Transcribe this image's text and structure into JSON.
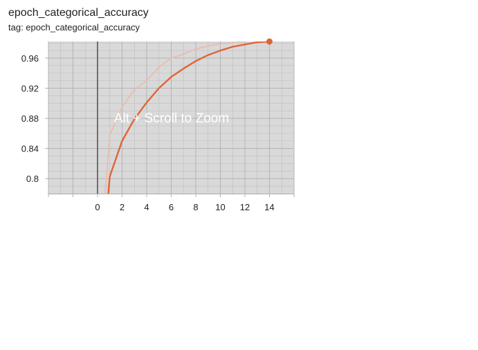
{
  "card": {
    "title": "epoch_categorical_accuracy",
    "tag": "tag: epoch_categorical_accuracy"
  },
  "overlay": {
    "hint": "Alt + Scroll to Zoom"
  },
  "colors": {
    "plot_bg": "#d9d9d9",
    "grid": "#b3b3b3",
    "zero_line": "#6e6e6e",
    "smoothed": "#e06436",
    "raw": "#e8bfb0"
  },
  "chart_data": {
    "type": "line",
    "title": "epoch_categorical_accuracy",
    "xlabel": "",
    "ylabel": "",
    "xlim": [
      -4,
      16
    ],
    "ylim": [
      0.78,
      0.982
    ],
    "grid": true,
    "x_ticks": [
      0,
      2,
      4,
      6,
      8,
      10,
      12,
      14
    ],
    "y_ticks": [
      0.8,
      0.84,
      0.88,
      0.92,
      0.96
    ],
    "x_tick_labels": [
      "0",
      "2",
      "4",
      "6",
      "8",
      "10",
      "12",
      "14"
    ],
    "y_tick_labels": [
      "0.8",
      "0.84",
      "0.88",
      "0.92",
      "0.96"
    ],
    "series": [
      {
        "role": "raw",
        "x": [
          0,
          1,
          2,
          3,
          4,
          5,
          6,
          7,
          8,
          9,
          10,
          11,
          12,
          13,
          14
        ],
        "y": [
          0.65,
          0.858,
          0.895,
          0.918,
          0.93,
          0.948,
          0.96,
          0.965,
          0.972,
          0.976,
          0.979,
          0.98,
          0.982,
          0.986,
          0.985
        ]
      },
      {
        "role": "smoothed",
        "x": [
          0,
          1,
          2,
          3,
          4,
          5,
          6,
          7,
          8,
          9,
          10,
          11,
          12,
          13,
          14
        ],
        "y": [
          0.62,
          0.803,
          0.85,
          0.879,
          0.901,
          0.92,
          0.935,
          0.946,
          0.956,
          0.964,
          0.97,
          0.975,
          0.978,
          0.981,
          0.982
        ]
      }
    ]
  }
}
